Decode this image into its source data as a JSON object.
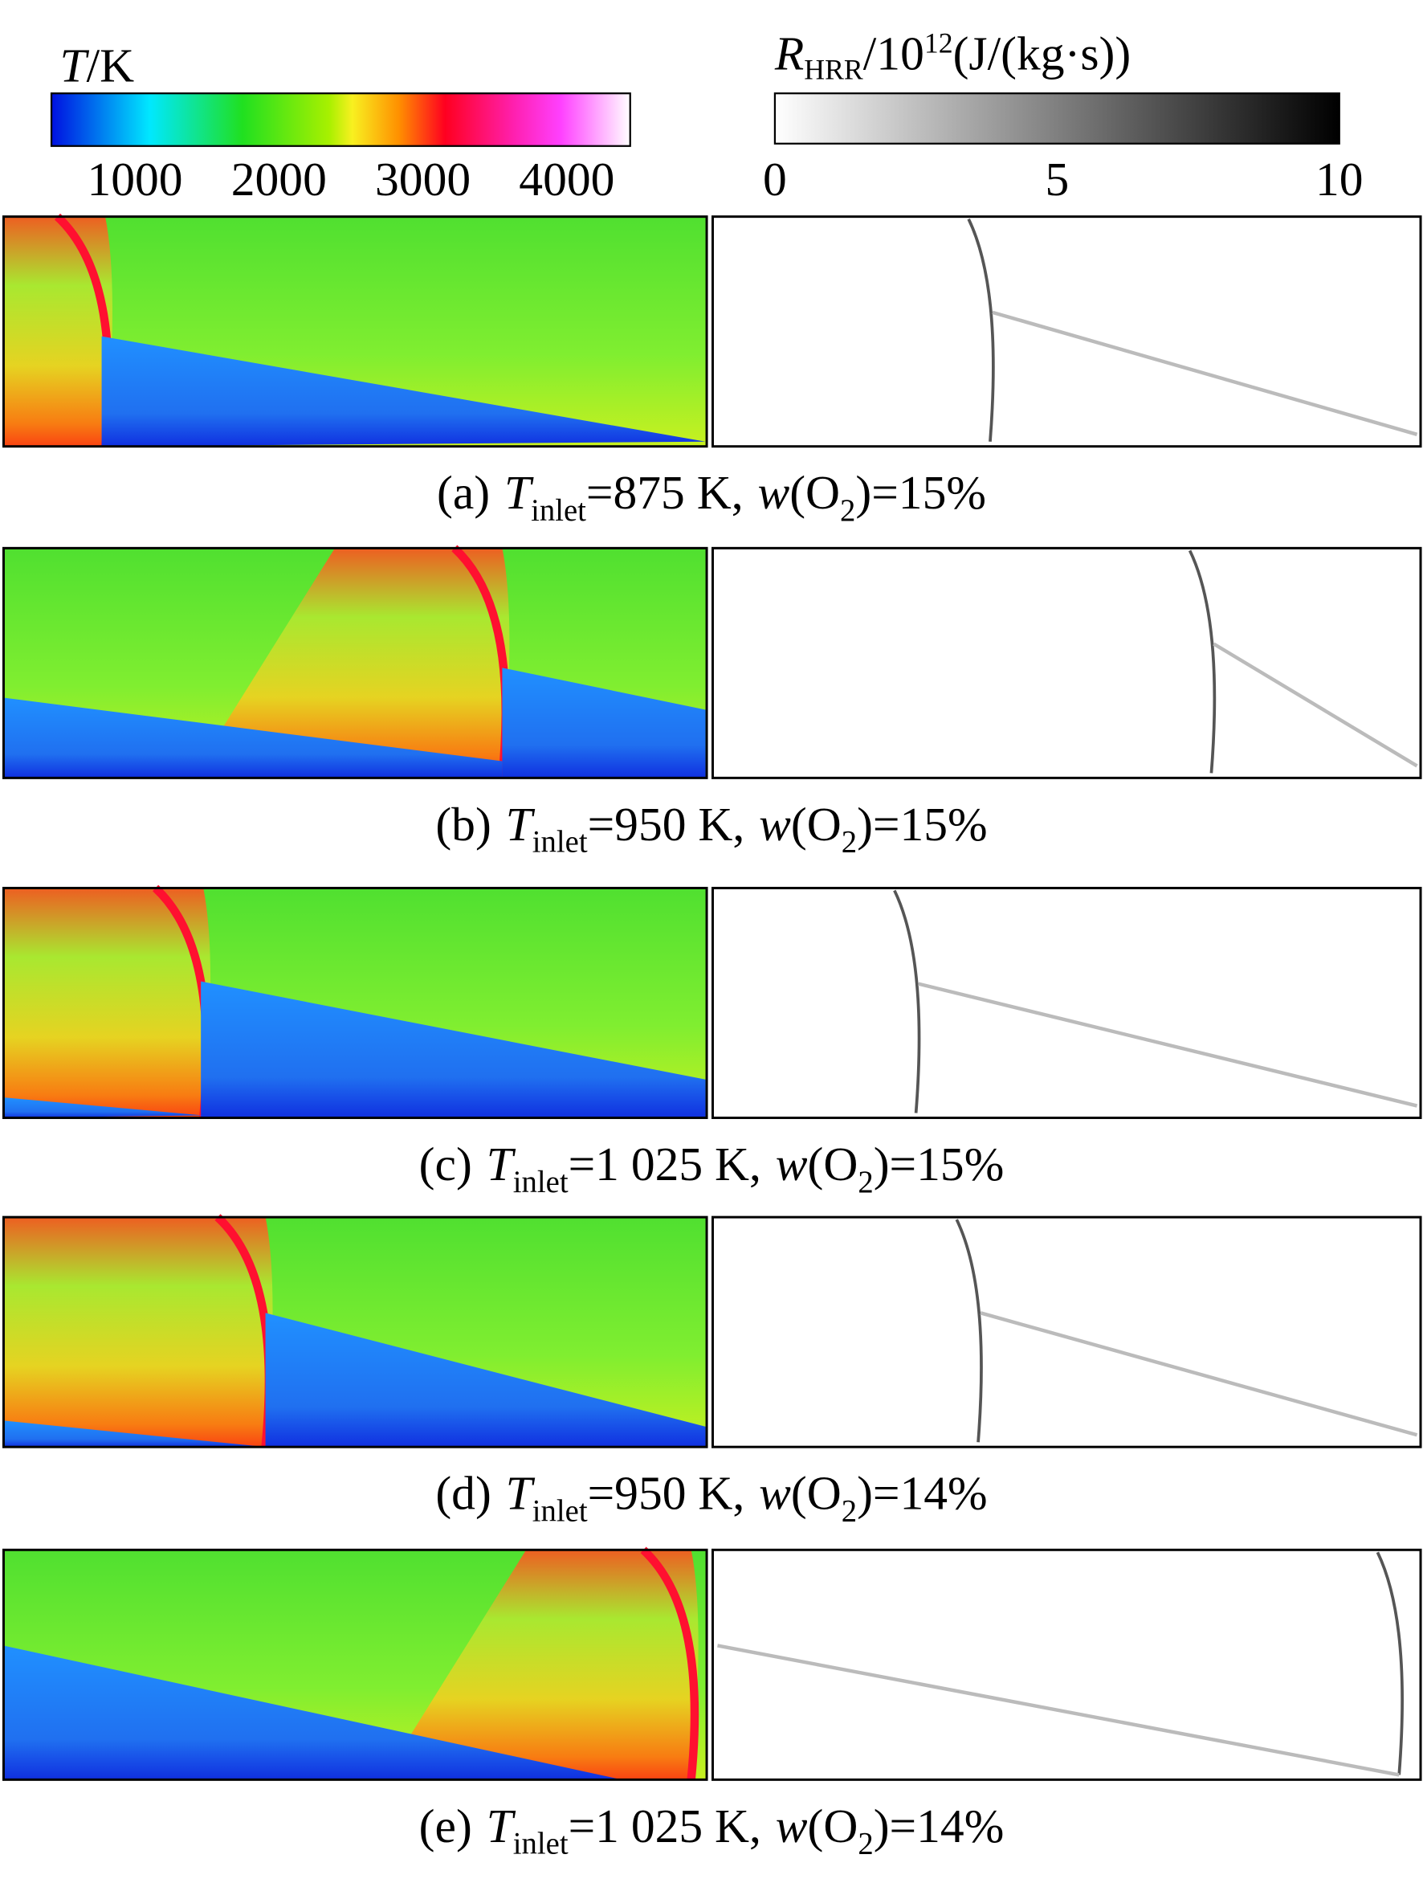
{
  "colorbars": [
    {
      "var": "T",
      "unit": "/K",
      "range": [
        420,
        4440
      ],
      "ticks": [
        1000,
        2000,
        3000,
        4000
      ]
    },
    {
      "var": "R",
      "sub": "HRR",
      "unit": "/10",
      "sup": "12",
      "unit2": "(J/(kg·s))",
      "range": [
        0,
        10
      ],
      "ticks": [
        0,
        5,
        10
      ]
    }
  ],
  "panels": [
    {
      "label": "(a)",
      "var": "T",
      "sub": "inlet",
      "value": "=875 K,",
      "var2": "w",
      "open": "(O",
      "sub2": "2",
      "close": ")=15%"
    },
    {
      "label": "(b)",
      "var": "T",
      "sub": "inlet",
      "value": "=950 K,",
      "var2": "w",
      "open": "(O",
      "sub2": "2",
      "close": ")=15%"
    },
    {
      "label": "(c)",
      "var": "T",
      "sub": "inlet",
      "value": "=1 025 K,",
      "var2": "w",
      "open": "(O",
      "sub2": "2",
      "close": ")=15%"
    },
    {
      "label": "(d)",
      "var": "T",
      "sub": "inlet",
      "value": "=950 K,",
      "var2": "w",
      "open": "(O",
      "sub2": "2",
      "close": ")=14%"
    },
    {
      "label": "(e)",
      "var": "T",
      "sub": "inlet",
      "value": "=1 025 K,",
      "var2": "w",
      "open": "(O",
      "sub2": "2",
      "close": ")=14%"
    }
  ]
}
